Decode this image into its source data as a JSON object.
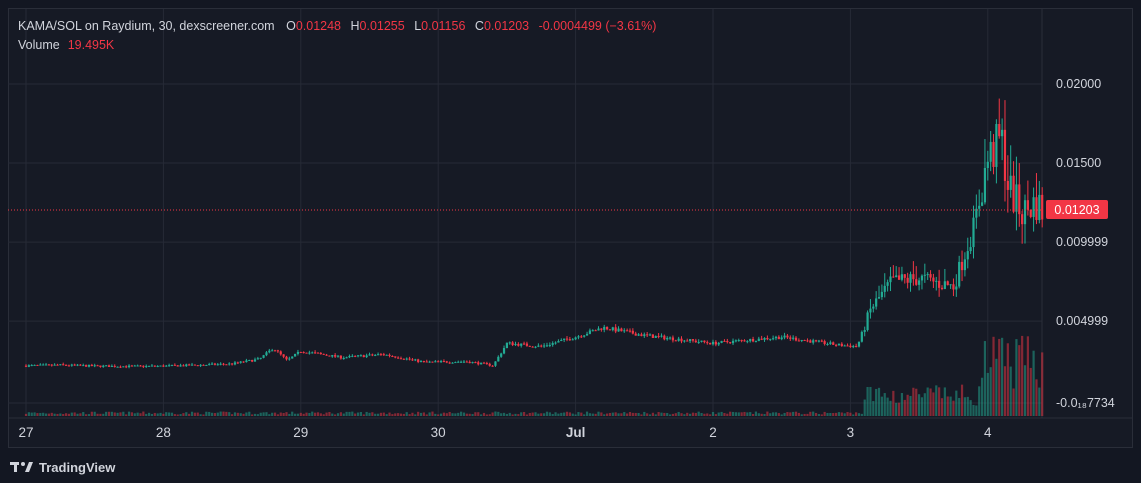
{
  "header": {
    "symbol": "KAMA/SOL on Raydium, 30, dexscreener.com",
    "open_label": "O",
    "open": "0.01248",
    "high_label": "H",
    "high": "0.01255",
    "low_label": "L",
    "low": "0.01156",
    "close_label": "C",
    "close": "0.01203",
    "change": "-0.0004499 (−3.61%)",
    "volume_label": "Volume",
    "volume": "19.495K"
  },
  "current_price_label": "0.01203",
  "footer": {
    "brand": "TradingView"
  },
  "colors": {
    "up": "#22ab94",
    "down": "#f23645",
    "background": "#161a25",
    "grid": "#262a36",
    "text": "#d1d4dc"
  },
  "chart_data": {
    "type": "candlestick",
    "x_ticks": [
      "27",
      "28",
      "29",
      "30",
      "Jul",
      "2",
      "3",
      "4"
    ],
    "y_ticks": [
      "0.02000",
      "0.01500",
      "0.009999",
      "0.004999",
      "-0.0₁₈7734"
    ],
    "ylim": [
      -0.0002,
      0.0205
    ],
    "current_price": 0.01203,
    "grid": true,
    "anchors": [
      {
        "t": 0.0,
        "p": 0.00218
      },
      {
        "t": 0.25,
        "p": 0.00222
      },
      {
        "t": 0.5,
        "p": 0.00216
      },
      {
        "t": 0.75,
        "p": 0.00214
      },
      {
        "t": 1.0,
        "p": 0.00216
      },
      {
        "t": 1.25,
        "p": 0.00222
      },
      {
        "t": 1.5,
        "p": 0.0023
      },
      {
        "t": 1.7,
        "p": 0.0026
      },
      {
        "t": 1.8,
        "p": 0.0033
      },
      {
        "t": 1.9,
        "p": 0.0025
      },
      {
        "t": 2.0,
        "p": 0.0031
      },
      {
        "t": 2.3,
        "p": 0.0027
      },
      {
        "t": 2.6,
        "p": 0.0029
      },
      {
        "t": 2.9,
        "p": 0.0024
      },
      {
        "t": 3.2,
        "p": 0.00245
      },
      {
        "t": 3.4,
        "p": 0.0022
      },
      {
        "t": 3.5,
        "p": 0.0036
      },
      {
        "t": 3.75,
        "p": 0.0034
      },
      {
        "t": 4.0,
        "p": 0.004
      },
      {
        "t": 4.2,
        "p": 0.0046
      },
      {
        "t": 4.5,
        "p": 0.0041
      },
      {
        "t": 5.0,
        "p": 0.0036
      },
      {
        "t": 5.5,
        "p": 0.004
      },
      {
        "t": 5.9,
        "p": 0.0035
      },
      {
        "t": 6.05,
        "p": 0.0034
      },
      {
        "t": 6.15,
        "p": 0.0058
      },
      {
        "t": 6.3,
        "p": 0.0075
      },
      {
        "t": 6.5,
        "p": 0.0077
      },
      {
        "t": 6.75,
        "p": 0.0072
      },
      {
        "t": 6.9,
        "p": 0.011
      },
      {
        "t": 7.0,
        "p": 0.0152
      },
      {
        "t": 7.1,
        "p": 0.0165
      },
      {
        "t": 7.15,
        "p": 0.0135
      },
      {
        "t": 7.25,
        "p": 0.0118
      },
      {
        "t": 7.35,
        "p": 0.0125
      },
      {
        "t": 7.4,
        "p": 0.012
      }
    ],
    "volume_ylim": [
      0,
      4000
    ]
  }
}
